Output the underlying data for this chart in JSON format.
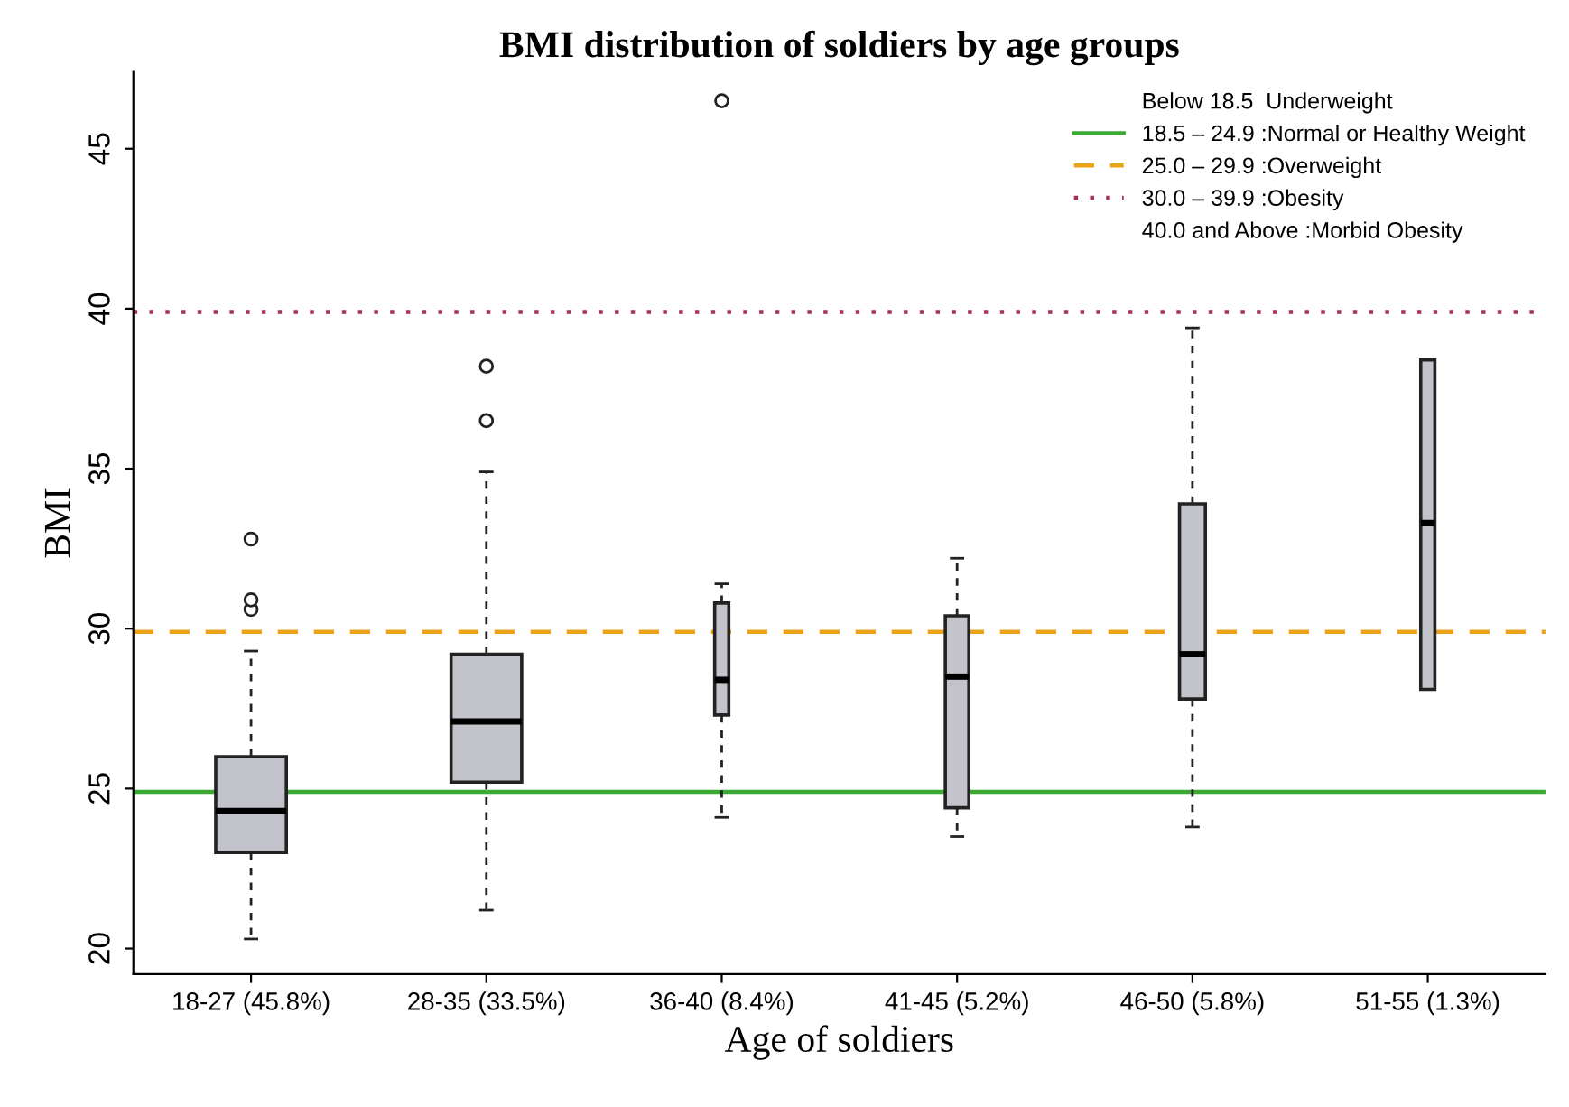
{
  "chart_data": {
    "type": "box",
    "title": "BMI distribution of soldiers by age groups",
    "xlabel": "Age of soldiers",
    "ylabel": "BMI",
    "categories": [
      "18-27 (45.8%)",
      "28-35 (33.5%)",
      "36-40 (8.4%)",
      "41-45 (5.2%)",
      "46-50 (5.8%)",
      "51-55 (1.3%)"
    ],
    "color": "#c3c3cb",
    "boxes": [
      {
        "low": 20.3,
        "q1": 23.0,
        "median": 24.3,
        "q3": 26.0,
        "high": 29.3,
        "outliers": [
          30.6,
          30.9,
          32.8
        ]
      },
      {
        "low": 21.2,
        "q1": 25.2,
        "median": 27.1,
        "q3": 29.2,
        "high": 34.9,
        "outliers": [
          36.5,
          38.2
        ]
      },
      {
        "low": 24.1,
        "q1": 27.3,
        "median": 28.4,
        "q3": 30.8,
        "high": 31.4,
        "outliers": [
          46.5
        ]
      },
      {
        "low": 23.5,
        "q1": 24.4,
        "median": 28.5,
        "q3": 30.4,
        "high": 32.2
      },
      {
        "low": 23.8,
        "q1": 27.8,
        "median": 29.2,
        "q3": 33.9,
        "high": 39.4
      },
      {
        "low": 28.1,
        "q1": 28.1,
        "median": 33.3,
        "q3": 38.4,
        "high": 38.4
      }
    ],
    "ylim": [
      19.2,
      47.4
    ],
    "yticks": [
      20,
      25,
      30,
      35,
      40,
      45
    ],
    "grid": false,
    "legend": "top right",
    "ref_lines": [
      {
        "axis": "y",
        "value": 24.9,
        "label": "18.5 – 24.9 :Normal or Healthy Weight",
        "color": "#3aaa35",
        "line_style": "solid"
      },
      {
        "axis": "y",
        "value": 29.9,
        "label": "25.0 – 29.9 :Overweight",
        "color": "#e8a317",
        "line_style": "dashed"
      },
      {
        "axis": "y",
        "value": 39.9,
        "label": "30.0 – 39.9 :Obesity",
        "color": "#a3314f",
        "line_style": "dotted"
      }
    ],
    "annotations": [
      "Below 18.5  Underweight",
      "40.0 and Above :Morbid Obesity"
    ]
  }
}
